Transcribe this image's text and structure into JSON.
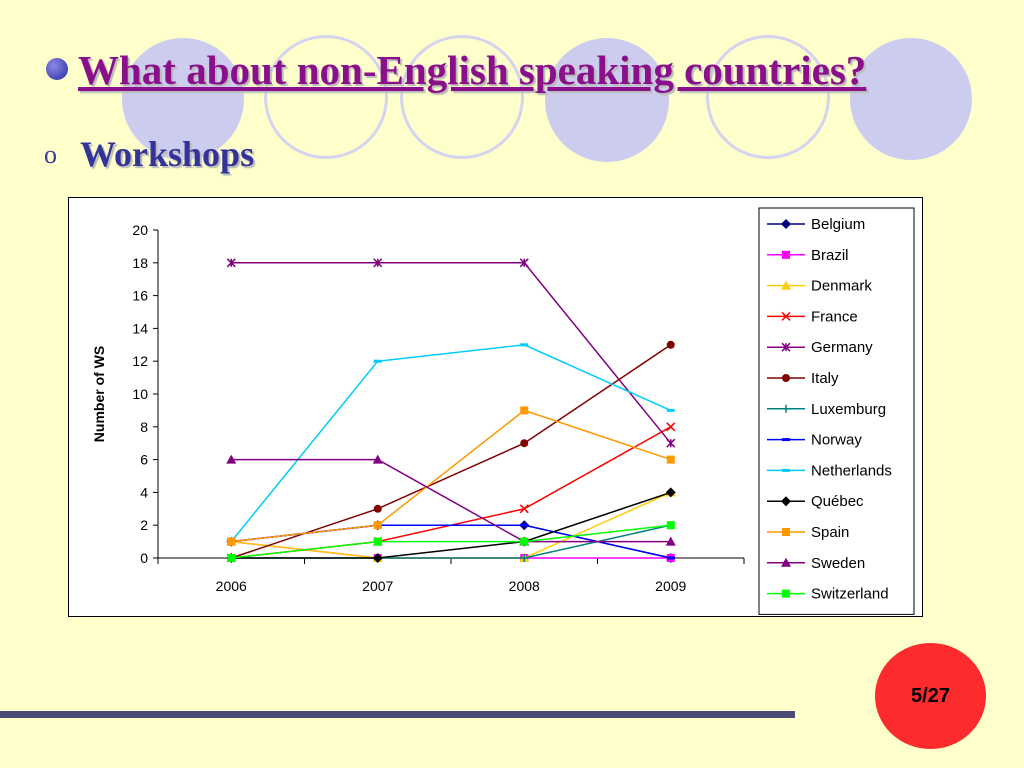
{
  "slide": {
    "title": "What about non-English speaking countries?",
    "subtitle": "Workshops",
    "sub_bullet": "o",
    "page_number": "5/27"
  },
  "colors": {
    "background": "#ffffcc",
    "title": "#8a0f8a",
    "subtitle": "#333399",
    "badge": "#fd2b2b"
  },
  "chart_data": {
    "type": "line",
    "ylabel": "Number of WS",
    "xlabel": "",
    "title": "",
    "categories": [
      "2006",
      "2007",
      "2008",
      "2009"
    ],
    "ylim": [
      0,
      20
    ],
    "yticks": [
      0,
      2,
      4,
      6,
      8,
      10,
      12,
      14,
      16,
      18,
      20
    ],
    "grid": false,
    "legend_position": "right",
    "series": [
      {
        "name": "Belgium",
        "values": [
          1,
          2,
          2,
          0
        ],
        "color": "#000080",
        "marker": "diamond"
      },
      {
        "name": "Brazil",
        "values": [
          1,
          0,
          0,
          0
        ],
        "color": "#ff00ff",
        "marker": "square"
      },
      {
        "name": "Denmark",
        "values": [
          1,
          0,
          0,
          4
        ],
        "color": "#ffcc00",
        "marker": "triangle"
      },
      {
        "name": "France",
        "values": [
          0,
          1,
          3,
          8
        ],
        "color": "#ff0000",
        "marker": "x"
      },
      {
        "name": "Germany",
        "values": [
          18,
          18,
          18,
          7
        ],
        "color": "#800080",
        "marker": "star"
      },
      {
        "name": "Italy",
        "values": [
          0,
          3,
          7,
          13
        ],
        "color": "#800000",
        "marker": "circle"
      },
      {
        "name": "Luxemburg",
        "values": [
          0,
          0,
          0,
          2
        ],
        "color": "#008080",
        "marker": "plus"
      },
      {
        "name": "Norway",
        "values": [
          1,
          2,
          2,
          0
        ],
        "color": "#0000ff",
        "marker": "dash"
      },
      {
        "name": "Netherlands",
        "values": [
          1,
          12,
          13,
          9
        ],
        "color": "#00ccff",
        "marker": "dash"
      },
      {
        "name": "Québec",
        "values": [
          0,
          0,
          1,
          4
        ],
        "color": "#000000",
        "marker": "diamond"
      },
      {
        "name": "Spain",
        "values": [
          1,
          2,
          9,
          6
        ],
        "color": "#ff9900",
        "marker": "square"
      },
      {
        "name": "Sweden",
        "values": [
          6,
          6,
          1,
          1
        ],
        "color": "#800080",
        "marker": "triangle"
      },
      {
        "name": "Switzerland",
        "values": [
          0,
          1,
          1,
          2
        ],
        "color": "#00ff00",
        "marker": "square"
      }
    ]
  }
}
